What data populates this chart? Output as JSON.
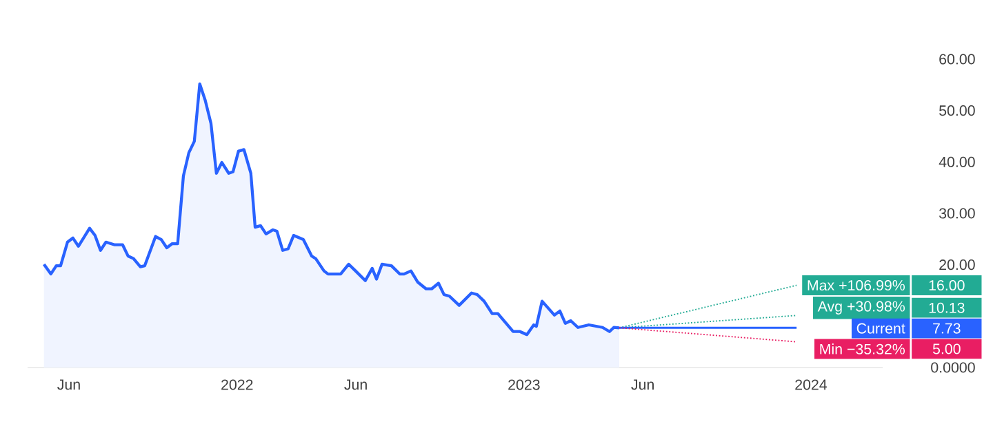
{
  "chart_data": {
    "type": "area",
    "legend": "right",
    "annotations": [
      "16.00",
      "10.13",
      "7.73",
      "5.00"
    ],
    "xlim": [
      2021.27,
      2024.25
    ],
    "ylim": [
      0,
      60
    ],
    "xticks": [
      {
        "value": 2021.414,
        "label": "Jun"
      },
      2022,
      {
        "value": 2022.414,
        "label": "Jun"
      },
      2023,
      {
        "value": 2023.414,
        "label": "Jun"
      },
      2024
    ],
    "yticks": [
      {
        "value": 0,
        "label": "0.0000"
      },
      {
        "value": 20,
        "label": "20.00"
      },
      {
        "value": 30,
        "label": "30.00"
      },
      {
        "value": 40,
        "label": "40.00"
      },
      {
        "value": 50,
        "label": "50.00"
      },
      {
        "value": 60,
        "label": "60.00"
      }
    ],
    "series": [
      {
        "color": "#2962ff",
        "x": [
          2021.327,
          2021.351,
          2021.37,
          2021.385,
          2021.409,
          2021.428,
          2021.447,
          2021.486,
          2021.505,
          2021.524,
          2021.543,
          2021.572,
          2021.601,
          2021.62,
          2021.639,
          2021.663,
          2021.678,
          2021.716,
          2021.736,
          2021.755,
          2021.774,
          2021.793,
          2021.813,
          2021.832,
          2021.851,
          2021.87,
          2021.889,
          2021.909,
          2021.928,
          2021.947,
          2021.971,
          2021.986,
          2022.005,
          2022.024,
          2022.048,
          2022.063,
          2022.082,
          2022.101,
          2022.125,
          2022.139,
          2022.159,
          2022.178,
          2022.197,
          2022.231,
          2022.26,
          2022.274,
          2022.303,
          2022.317,
          2022.361,
          2022.389,
          2022.413,
          2022.447,
          2022.471,
          2022.486,
          2022.505,
          2022.538,
          2022.567,
          2022.582,
          2022.606,
          2022.63,
          2022.659,
          2022.678,
          2022.702,
          2022.721,
          2022.74,
          2022.774,
          2022.817,
          2022.837,
          2022.861,
          2022.889,
          2022.909,
          2022.962,
          2022.986,
          2023.01,
          2023.034,
          2023.043,
          2023.063,
          2023.106,
          2023.125,
          2023.144,
          2023.163,
          2023.188,
          2023.226,
          2023.274,
          2023.298,
          2023.313,
          2023.332
        ],
        "values": [
          20.1,
          18.2,
          19.8,
          19.8,
          24.4,
          25.2,
          23.6,
          27.1,
          25.7,
          22.8,
          24.4,
          23.9,
          23.9,
          21.7,
          21.2,
          19.6,
          19.8,
          25.5,
          24.9,
          23.3,
          24.1,
          24.1,
          37.3,
          41.8,
          44.0,
          55.2,
          52.0,
          47.5,
          37.8,
          39.9,
          37.8,
          38.1,
          42.1,
          42.4,
          37.8,
          27.3,
          27.6,
          26.0,
          26.8,
          26.5,
          22.8,
          23.1,
          25.7,
          24.9,
          21.7,
          21.2,
          18.8,
          18.2,
          18.2,
          20.1,
          18.8,
          16.9,
          19.3,
          17.2,
          20.1,
          19.8,
          18.2,
          18.2,
          18.8,
          16.6,
          15.3,
          15.3,
          16.4,
          14.2,
          13.9,
          12.1,
          14.5,
          14.2,
          12.9,
          10.5,
          10.5,
          7.0,
          7.0,
          6.4,
          8.3,
          8.0,
          12.9,
          10.2,
          11.0,
          8.6,
          9.1,
          7.8,
          8.3,
          7.8,
          7.0,
          7.8,
          7.73
        ]
      },
      {
        "type": "line",
        "name": "Max +106.99%",
        "color": "#22ab94",
        "line_style": "dotted",
        "x": [
          2023.332,
          2023.95
        ],
        "values": [
          7.73,
          16.0
        ]
      },
      {
        "type": "line",
        "name": "Avg +30.98%",
        "color": "#22ab94",
        "line_style": "dotted",
        "x": [
          2023.332,
          2023.95
        ],
        "values": [
          7.73,
          10.13
        ]
      },
      {
        "type": "line",
        "name": "Current",
        "color": "#2962ff",
        "line_style": "solid",
        "x": [
          2023.332,
          2023.95
        ],
        "values": [
          7.73,
          7.73
        ]
      },
      {
        "type": "line",
        "name": "Min −35.32%",
        "color": "#e91e63",
        "line_style": "dotted",
        "x": [
          2023.332,
          2023.95
        ],
        "values": [
          7.73,
          5.0
        ]
      }
    ]
  }
}
